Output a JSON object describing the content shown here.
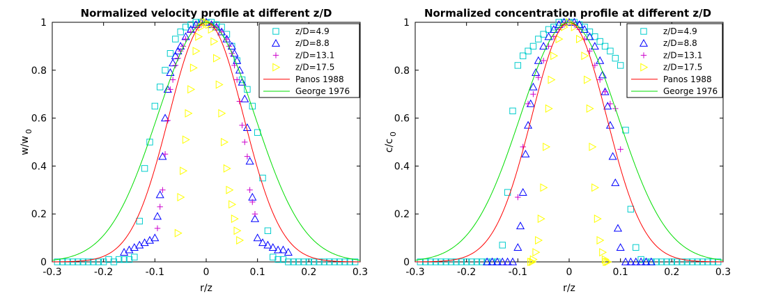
{
  "chart_data": [
    {
      "type": "scatter",
      "title": "Normalized velocity profile at different z/D",
      "xlabel": "r/z",
      "ylabel_main": "w/w",
      "ylabel_sub": "0",
      "xlim": [
        -0.3,
        0.3
      ],
      "ylim": [
        0,
        1
      ],
      "xticks": [
        "-0.3",
        "-0.2",
        "-0.1",
        "0",
        "0.1",
        "0.2",
        "0.3"
      ],
      "yticks": [
        "0",
        "0.2",
        "0.4",
        "0.6",
        "0.8",
        "1"
      ],
      "legend_position": "top-right",
      "series": [
        {
          "name": "z/D=4.9",
          "marker": "square",
          "color": "#00cccc",
          "x": [
            -0.29,
            -0.28,
            -0.27,
            -0.26,
            -0.25,
            -0.24,
            -0.23,
            -0.22,
            -0.21,
            -0.2,
            -0.19,
            -0.18,
            -0.17,
            -0.16,
            -0.15,
            -0.14,
            -0.13,
            -0.12,
            -0.11,
            -0.1,
            -0.09,
            -0.08,
            -0.07,
            -0.06,
            -0.05,
            -0.04,
            -0.03,
            -0.02,
            -0.01,
            0,
            0.01,
            0.02,
            0.03,
            0.04,
            0.05,
            0.06,
            0.07,
            0.08,
            0.09,
            0.1,
            0.11,
            0.12,
            0.13,
            0.14,
            0.15,
            0.16,
            0.17,
            0.18,
            0.19,
            0.2,
            0.21,
            0.22,
            0.23,
            0.24,
            0.25,
            0.26,
            0.27,
            0.28,
            0.29
          ],
          "y": [
            0,
            0,
            0,
            0,
            0,
            0,
            0,
            0,
            0,
            0,
            0.01,
            0,
            0.01,
            0.01,
            0.01,
            0.02,
            0.17,
            0.39,
            0.5,
            0.65,
            0.73,
            0.8,
            0.87,
            0.93,
            0.96,
            0.98,
            0.99,
            1,
            1,
            1,
            1,
            0.99,
            0.98,
            0.95,
            0.9,
            0.84,
            0.76,
            0.72,
            0.65,
            0.54,
            0.35,
            0.13,
            0.02,
            0.01,
            0.01,
            0,
            0,
            0,
            0,
            0,
            0,
            0,
            0,
            0,
            0,
            0,
            0,
            0,
            0
          ]
        },
        {
          "name": "z/D=8.8",
          "marker": "triangle-up",
          "color": "#0000ff",
          "x": [
            -0.16,
            -0.15,
            -0.14,
            -0.13,
            -0.12,
            -0.11,
            -0.1,
            -0.095,
            -0.09,
            -0.085,
            -0.08,
            -0.075,
            -0.07,
            -0.065,
            -0.06,
            -0.055,
            -0.05,
            -0.04,
            -0.03,
            -0.02,
            -0.01,
            0,
            0.01,
            0.02,
            0.03,
            0.04,
            0.05,
            0.055,
            0.06,
            0.065,
            0.07,
            0.075,
            0.08,
            0.085,
            0.09,
            0.095,
            0.1,
            0.11,
            0.12,
            0.13,
            0.14,
            0.15,
            0.16
          ],
          "y": [
            0.04,
            0.05,
            0.06,
            0.07,
            0.08,
            0.09,
            0.1,
            0.19,
            0.28,
            0.44,
            0.6,
            0.72,
            0.79,
            0.83,
            0.86,
            0.88,
            0.9,
            0.94,
            0.97,
            0.99,
            1,
            1,
            0.99,
            0.98,
            0.96,
            0.93,
            0.9,
            0.87,
            0.84,
            0.8,
            0.75,
            0.68,
            0.56,
            0.42,
            0.27,
            0.18,
            0.1,
            0.08,
            0.07,
            0.06,
            0.05,
            0.05,
            0.04
          ]
        },
        {
          "name": "z/D=13.1",
          "marker": "plus",
          "color": "#cc00cc",
          "x": [
            -0.095,
            -0.09,
            -0.085,
            -0.08,
            -0.075,
            -0.07,
            -0.065,
            -0.06,
            -0.055,
            -0.05,
            -0.045,
            -0.04,
            -0.03,
            -0.02,
            -0.01,
            0,
            0.01,
            0.02,
            0.03,
            0.04,
            0.045,
            0.05,
            0.055,
            0.06,
            0.065,
            0.07,
            0.075,
            0.08,
            0.085,
            0.09,
            0.095
          ],
          "y": [
            0.14,
            0.23,
            0.3,
            0.45,
            0.59,
            0.72,
            0.76,
            0.82,
            0.85,
            0.88,
            0.9,
            0.93,
            0.96,
            0.98,
            0.99,
            1,
            0.99,
            0.98,
            0.96,
            0.93,
            0.9,
            0.87,
            0.82,
            0.76,
            0.67,
            0.57,
            0.5,
            0.44,
            0.3,
            0.25,
            0.2
          ]
        },
        {
          "name": "z/D=17.5",
          "marker": "triangle-right",
          "color": "#ffff00",
          "x": [
            -0.055,
            -0.05,
            -0.045,
            -0.04,
            -0.035,
            -0.03,
            -0.025,
            -0.02,
            -0.015,
            -0.01,
            -0.005,
            0,
            0.005,
            0.01,
            0.015,
            0.02,
            0.025,
            0.03,
            0.035,
            0.04,
            0.045,
            0.05,
            0.055,
            0.06,
            0.065
          ],
          "y": [
            0.12,
            0.27,
            0.38,
            0.51,
            0.62,
            0.72,
            0.81,
            0.88,
            0.94,
            0.98,
            1,
            1,
            0.99,
            0.97,
            0.92,
            0.85,
            0.74,
            0.62,
            0.5,
            0.39,
            0.3,
            0.24,
            0.18,
            0.13,
            0.09
          ]
        },
        {
          "name": "Panos 1988",
          "type": "line",
          "color": "#ff0000",
          "k": 94,
          "x_range": [
            -0.3,
            0.3
          ]
        },
        {
          "name": "George 1976",
          "type": "line",
          "color": "#00dd00",
          "k": 55,
          "x_range": [
            -0.3,
            0.3
          ]
        }
      ]
    },
    {
      "type": "scatter",
      "title": "Normalized concentration profile at different z/D",
      "xlabel": "r/z",
      "ylabel_main": "c/c",
      "ylabel_sub": "0",
      "xlim": [
        -0.3,
        0.3
      ],
      "ylim": [
        0,
        1
      ],
      "xticks": [
        "-0.3",
        "-0.2",
        "-0.1",
        "0",
        "0.1",
        "0.2",
        "0.3"
      ],
      "yticks": [
        "0",
        "0.2",
        "0.4",
        "0.6",
        "0.8",
        "1"
      ],
      "legend_position": "top-right",
      "series": [
        {
          "name": "z/D=4.9",
          "marker": "square",
          "color": "#00cccc",
          "x": [
            -0.29,
            -0.28,
            -0.27,
            -0.26,
            -0.25,
            -0.24,
            -0.23,
            -0.22,
            -0.21,
            -0.2,
            -0.19,
            -0.18,
            -0.17,
            -0.16,
            -0.15,
            -0.14,
            -0.13,
            -0.12,
            -0.11,
            -0.1,
            -0.09,
            -0.08,
            -0.07,
            -0.06,
            -0.05,
            -0.04,
            -0.03,
            -0.02,
            -0.01,
            0,
            0.01,
            0.02,
            0.03,
            0.04,
            0.05,
            0.06,
            0.07,
            0.08,
            0.09,
            0.1,
            0.11,
            0.12,
            0.13,
            0.14,
            0.15,
            0.16,
            0.17,
            0.18,
            0.19,
            0.2,
            0.21,
            0.22,
            0.23,
            0.24,
            0.25,
            0.26,
            0.27,
            0.28,
            0.29
          ],
          "y": [
            0,
            0,
            0,
            0,
            0,
            0,
            0,
            0,
            0,
            0,
            0,
            0,
            0,
            0,
            0,
            0,
            0.07,
            0.29,
            0.63,
            0.82,
            0.86,
            0.88,
            0.9,
            0.93,
            0.95,
            0.97,
            0.98,
            1,
            1,
            1,
            1,
            0.99,
            0.98,
            0.96,
            0.94,
            0.92,
            0.9,
            0.88,
            0.85,
            0.82,
            0.55,
            0.22,
            0.06,
            0.01,
            0,
            0,
            0,
            0,
            0,
            0,
            0,
            0,
            0,
            0,
            0,
            0,
            0,
            0,
            0
          ]
        },
        {
          "name": "z/D=8.8",
          "marker": "triangle-up",
          "color": "#0000ff",
          "x": [
            -0.16,
            -0.15,
            -0.14,
            -0.13,
            -0.12,
            -0.11,
            -0.1,
            -0.095,
            -0.09,
            -0.085,
            -0.08,
            -0.075,
            -0.07,
            -0.065,
            -0.06,
            -0.05,
            -0.04,
            -0.03,
            -0.02,
            -0.01,
            0,
            0.01,
            0.02,
            0.03,
            0.04,
            0.05,
            0.06,
            0.065,
            0.07,
            0.075,
            0.08,
            0.085,
            0.09,
            0.095,
            0.1,
            0.11,
            0.12,
            0.13,
            0.14,
            0.15,
            0.16
          ],
          "y": [
            0,
            0,
            0,
            0,
            0,
            0,
            0.06,
            0.15,
            0.29,
            0.45,
            0.57,
            0.66,
            0.73,
            0.79,
            0.84,
            0.9,
            0.94,
            0.97,
            0.99,
            1,
            1,
            1,
            0.99,
            0.97,
            0.94,
            0.9,
            0.84,
            0.78,
            0.71,
            0.65,
            0.57,
            0.44,
            0.33,
            0.14,
            0.06,
            0,
            0,
            0,
            0,
            0,
            0
          ]
        },
        {
          "name": "z/D=13.1",
          "marker": "plus",
          "color": "#cc00cc",
          "x": [
            -0.1,
            -0.09,
            -0.08,
            -0.07,
            -0.06,
            -0.05,
            -0.04,
            -0.03,
            -0.02,
            -0.01,
            0,
            0.01,
            0.02,
            0.03,
            0.04,
            0.05,
            0.06,
            0.07,
            0.08,
            0.09,
            0.1
          ],
          "y": [
            0.27,
            0.48,
            0.66,
            0.7,
            0.77,
            0.84,
            0.9,
            0.94,
            0.97,
            0.99,
            1,
            0.99,
            0.97,
            0.93,
            0.88,
            0.82,
            0.76,
            0.71,
            0.66,
            0.64,
            0.47
          ]
        },
        {
          "name": "z/D=17.5",
          "marker": "triangle-right",
          "color": "#ffff00",
          "x": [
            -0.075,
            -0.072,
            -0.07,
            -0.065,
            -0.06,
            -0.055,
            -0.05,
            -0.045,
            -0.04,
            -0.035,
            -0.03,
            -0.02,
            -0.01,
            0,
            0.01,
            0.02,
            0.03,
            0.035,
            0.04,
            0.045,
            0.05,
            0.055,
            0.06,
            0.065,
            0.07,
            0.072,
            0.075
          ],
          "y": [
            0,
            0,
            0.01,
            0.04,
            0.09,
            0.18,
            0.31,
            0.48,
            0.64,
            0.76,
            0.86,
            0.93,
            0.98,
            1,
            0.98,
            0.93,
            0.86,
            0.76,
            0.64,
            0.48,
            0.31,
            0.18,
            0.09,
            0.04,
            0.01,
            0,
            0
          ]
        },
        {
          "name": "Panos 1988",
          "type": "line",
          "color": "#ff0000",
          "k": 94,
          "x_range": [
            -0.3,
            0.3
          ]
        },
        {
          "name": "George 1976",
          "type": "line",
          "color": "#00dd00",
          "k": 55,
          "x_range": [
            -0.3,
            0.3
          ]
        }
      ]
    }
  ]
}
